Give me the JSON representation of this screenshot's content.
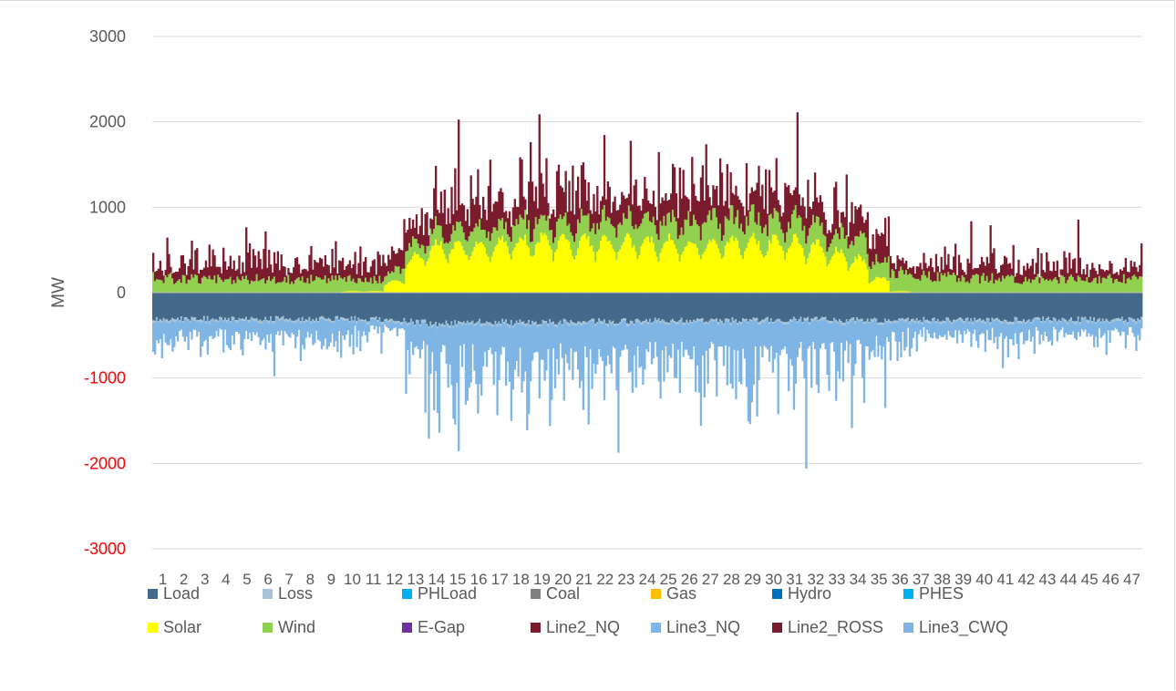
{
  "chart_data": {
    "type": "bar",
    "stacked": true,
    "ylabel": "MW",
    "ylim": [
      -3000,
      3000
    ],
    "yticks": [
      3000,
      2000,
      1000,
      0,
      -1000,
      -2000,
      -3000
    ],
    "negative_tick_color": "#ff0000",
    "grid": true,
    "legend_position": "bottom",
    "categories": [
      "1",
      "2",
      "3",
      "4",
      "5",
      "6",
      "7",
      "8",
      "9",
      "10",
      "11",
      "12",
      "13",
      "14",
      "15",
      "16",
      "17",
      "18",
      "19",
      "20",
      "21",
      "22",
      "23",
      "24",
      "25",
      "26",
      "27",
      "28",
      "29",
      "30",
      "31",
      "32",
      "33",
      "34",
      "35",
      "36",
      "37",
      "38",
      "39",
      "40",
      "41",
      "42",
      "43",
      "44",
      "45",
      "46",
      "47"
    ],
    "series": [
      {
        "name": "Load",
        "color": "#44698a"
      },
      {
        "name": "Loss",
        "color": "#a9c3d6"
      },
      {
        "name": "PHLoad",
        "color": "#00b0f0"
      },
      {
        "name": "Coal",
        "color": "#808080"
      },
      {
        "name": "Gas",
        "color": "#ffc000"
      },
      {
        "name": "Hydro",
        "color": "#0070c0"
      },
      {
        "name": "PHES",
        "color": "#00b0f0"
      },
      {
        "name": "Solar",
        "color": "#ffff00"
      },
      {
        "name": "Wind",
        "color": "#92d050"
      },
      {
        "name": "E-Gap",
        "color": "#7030a0"
      },
      {
        "name": "Line2_NQ",
        "color": "#7b1c2e"
      },
      {
        "name": "Line3_NQ",
        "color": "#7fb5e4"
      },
      {
        "name": "Line2_ROSS",
        "color": "#7b1c2e"
      },
      {
        "name": "Line3_CWQ",
        "color": "#7fb5e4"
      }
    ],
    "envelope_by_category": {
      "load": [
        330,
        320,
        320,
        320,
        320,
        320,
        320,
        320,
        320,
        320,
        330,
        330,
        360,
        380,
        370,
        360,
        360,
        370,
        360,
        360,
        350,
        350,
        350,
        340,
        340,
        340,
        340,
        340,
        330,
        330,
        330,
        330,
        340,
        340,
        340,
        330,
        330,
        330,
        330,
        330,
        330,
        330,
        330,
        330,
        330,
        330,
        330
      ],
      "solar": [
        0,
        0,
        0,
        0,
        0,
        0,
        0,
        0,
        0,
        20,
        20,
        150,
        500,
        650,
        650,
        650,
        700,
        720,
        720,
        700,
        700,
        700,
        700,
        700,
        700,
        680,
        680,
        700,
        700,
        700,
        700,
        650,
        550,
        450,
        200,
        20,
        0,
        0,
        0,
        0,
        0,
        0,
        0,
        0,
        0,
        0,
        0
      ],
      "wind": [
        220,
        200,
        200,
        200,
        200,
        200,
        200,
        200,
        200,
        180,
        170,
        180,
        220,
        250,
        260,
        270,
        280,
        300,
        300,
        300,
        320,
        330,
        330,
        330,
        340,
        340,
        350,
        350,
        340,
        330,
        330,
        320,
        310,
        300,
        290,
        280,
        260,
        240,
        220,
        210,
        200,
        200,
        200,
        200,
        200,
        200,
        200
      ],
      "line2": [
        400,
        500,
        500,
        500,
        500,
        500,
        500,
        500,
        500,
        450,
        420,
        450,
        650,
        750,
        800,
        800,
        800,
        820,
        830,
        840,
        850,
        850,
        860,
        860,
        870,
        870,
        880,
        880,
        880,
        880,
        880,
        850,
        800,
        750,
        650,
        450,
        400,
        400,
        400,
        420,
        420,
        420,
        420,
        420,
        420,
        420,
        420
      ],
      "line3": [
        500,
        520,
        520,
        520,
        520,
        520,
        520,
        520,
        520,
        450,
        350,
        200,
        900,
        1100,
        1200,
        1250,
        1250,
        1250,
        1250,
        1250,
        1250,
        1250,
        1250,
        1250,
        1250,
        1250,
        1250,
        1300,
        1300,
        1300,
        1250,
        1200,
        1100,
        1000,
        800,
        500,
        400,
        400,
        420,
        450,
        450,
        450,
        450,
        450,
        450,
        450,
        450
      ]
    }
  }
}
